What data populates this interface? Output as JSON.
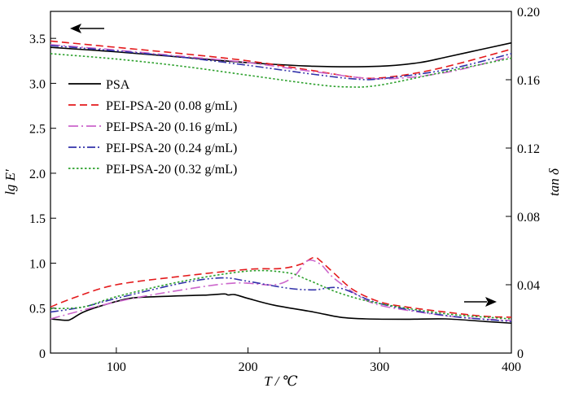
{
  "chart_data": {
    "type": "line",
    "xlabel": "T / ℃",
    "ylabel_left": "lg E′",
    "ylabel_right": "tan δ",
    "xlim": [
      50,
      400
    ],
    "ylim_left": [
      0,
      3.8
    ],
    "ylim_right": [
      0,
      0.2
    ],
    "xticks": [
      "100",
      "200",
      "300",
      "400"
    ],
    "yticks_left": [
      "0",
      "0.5",
      "1.0",
      "1.5",
      "2.0",
      "2.5",
      "3.0",
      "3.5"
    ],
    "yticks_right": [
      "0",
      "0.04",
      "0.08",
      "0.12",
      "0.16",
      "0.20"
    ],
    "legend_position": "middle-left",
    "annotations": [
      {
        "type": "arrow",
        "direction": "left",
        "axis": "left",
        "target": "upper curves"
      },
      {
        "type": "arrow",
        "direction": "right",
        "axis": "right",
        "target": "lower curves"
      }
    ],
    "series": [
      {
        "name": "PSA",
        "color": "#000000",
        "dash": "solid",
        "modulus": {
          "x": [
            50,
            100,
            150,
            200,
            250,
            300,
            330,
            350,
            375,
            400
          ],
          "y": [
            3.4,
            3.35,
            3.29,
            3.23,
            3.19,
            3.19,
            3.23,
            3.29,
            3.37,
            3.45
          ]
        },
        "tan_delta": {
          "x": [
            50,
            62,
            66,
            75,
            90,
            110,
            130,
            160,
            170,
            182,
            185,
            190,
            200,
            220,
            250,
            270,
            290,
            320,
            350,
            380,
            400
          ],
          "y": [
            0.02,
            0.0192,
            0.02,
            0.024,
            0.028,
            0.032,
            0.033,
            0.0338,
            0.034,
            0.0346,
            0.034,
            0.0342,
            0.032,
            0.028,
            0.024,
            0.021,
            0.02,
            0.0198,
            0.02,
            0.0185,
            0.0175
          ]
        }
      },
      {
        "name": "PEI-PSA-20 (0.08 g/mL)",
        "color": "#e41a1c",
        "dash": "dashed",
        "modulus": {
          "x": [
            50,
            100,
            150,
            200,
            250,
            280,
            300,
            330,
            360,
            400
          ],
          "y": [
            3.47,
            3.4,
            3.33,
            3.25,
            3.14,
            3.07,
            3.06,
            3.12,
            3.22,
            3.38
          ]
        },
        "tan_delta": {
          "x": [
            50,
            70,
            100,
            150,
            200,
            225,
            240,
            250,
            255,
            265,
            280,
            300,
            320,
            350,
            380,
            400
          ],
          "y": [
            0.027,
            0.033,
            0.04,
            0.045,
            0.049,
            0.0495,
            0.052,
            0.056,
            0.054,
            0.047,
            0.037,
            0.03,
            0.027,
            0.024,
            0.0215,
            0.021
          ]
        }
      },
      {
        "name": "PEI-PSA-20 (0.16 g/mL)",
        "color": "#cc66cc",
        "dash": "dashdot",
        "modulus": {
          "x": [
            50,
            100,
            150,
            200,
            250,
            300,
            350,
            400
          ],
          "y": [
            3.43,
            3.37,
            3.3,
            3.23,
            3.13,
            3.05,
            3.12,
            3.3
          ]
        },
        "tan_delta": {
          "x": [
            50,
            100,
            150,
            190,
            220,
            235,
            245,
            255,
            265,
            285,
            300,
            330,
            360,
            400
          ],
          "y": [
            0.02,
            0.03,
            0.037,
            0.041,
            0.04,
            0.045,
            0.054,
            0.052,
            0.044,
            0.033,
            0.028,
            0.024,
            0.021,
            0.019
          ]
        }
      },
      {
        "name": "PEI-PSA-20 (0.24 g/mL)",
        "color": "#3333aa",
        "dash": "dashdotdot",
        "modulus": {
          "x": [
            50,
            100,
            150,
            200,
            250,
            280,
            300,
            350,
            400
          ],
          "y": [
            3.42,
            3.36,
            3.29,
            3.2,
            3.1,
            3.05,
            3.05,
            3.15,
            3.33
          ]
        },
        "tan_delta": {
          "x": [
            50,
            75,
            100,
            150,
            180,
            200,
            230,
            250,
            270,
            300,
            350,
            400
          ],
          "y": [
            0.024,
            0.027,
            0.032,
            0.041,
            0.044,
            0.042,
            0.038,
            0.037,
            0.038,
            0.029,
            0.022,
            0.0185
          ]
        }
      },
      {
        "name": "PEI-PSA-20 (0.32 g/mL)",
        "color": "#2ca02c",
        "dash": "dotted",
        "modulus": {
          "x": [
            50,
            100,
            150,
            200,
            250,
            275,
            300,
            350,
            400
          ],
          "y": [
            3.33,
            3.27,
            3.19,
            3.09,
            2.99,
            2.96,
            2.98,
            3.13,
            3.28
          ]
        },
        "tan_delta": {
          "x": [
            50,
            75,
            100,
            150,
            200,
            230,
            245,
            270,
            300,
            350,
            400
          ],
          "y": [
            0.026,
            0.027,
            0.033,
            0.042,
            0.048,
            0.047,
            0.043,
            0.035,
            0.029,
            0.023,
            0.02
          ]
        }
      }
    ]
  }
}
